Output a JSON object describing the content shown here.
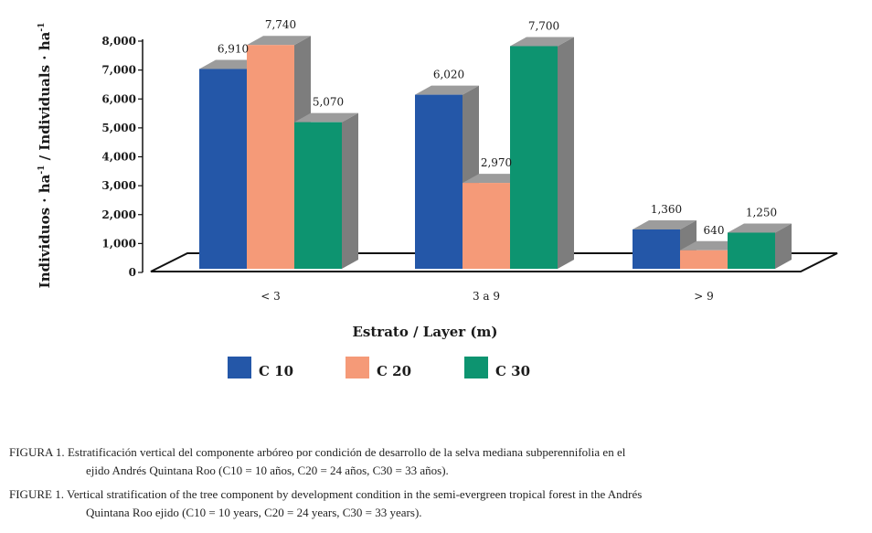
{
  "chart_data": {
    "type": "bar",
    "style": "3d-clustered",
    "categories": [
      "< 3",
      "3 a 9",
      "> 9"
    ],
    "series": [
      {
        "name": "C 10",
        "color": "#2457a8",
        "values": [
          6910,
          6020,
          1360
        ]
      },
      {
        "name": "C 20",
        "color": "#f59a78",
        "values": [
          7740,
          2970,
          640
        ]
      },
      {
        "name": "C 30",
        "color": "#0d9470",
        "values": [
          5070,
          7700,
          1250
        ]
      }
    ],
    "value_labels": [
      [
        "6,910",
        "6,020",
        "1,360"
      ],
      [
        "7,740",
        "2,970",
        "640"
      ],
      [
        "5,070",
        "7,700",
        "1,250"
      ]
    ],
    "yticks": [
      {
        "value": 0,
        "label": "0"
      },
      {
        "value": 1000,
        "label": "1,000"
      },
      {
        "value": 2000,
        "label": "2,000"
      },
      {
        "value": 3000,
        "label": "3,000"
      },
      {
        "value": 4000,
        "label": "4,000"
      },
      {
        "value": 5000,
        "label": "5,000"
      },
      {
        "value": 6000,
        "label": "6,000"
      },
      {
        "value": 7000,
        "label": "7,000"
      },
      {
        "value": 8000,
        "label": "8,000"
      }
    ],
    "ylim": [
      0,
      8000
    ],
    "ylabel": {
      "main": "Individuos · ha",
      "sup": "-1",
      "sep": " / Individuals · ha",
      "sup2": "-1"
    },
    "xlabel": "Estrato / Layer (m)",
    "legend_position": "bottom",
    "grid": false
  },
  "caption": {
    "es_label": "FIGURA 1.",
    "es_line1": "Estratificación vertical del componente arbóreo por condición de desarrollo de la selva mediana subperennifolia en el",
    "es_line2": "ejido Andrés Quintana Roo (C10 = 10 años, C20 = 24 años, C30 = 33 años).",
    "en_label": "FIGURE 1.",
    "en_line1": "Vertical stratification of the tree component by development condition in the semi-evergreen tropical forest in the Andrés",
    "en_line2": "Quintana Roo ejido (C10 = 10 years, C20 = 24 years, C30 = 33 years)."
  }
}
